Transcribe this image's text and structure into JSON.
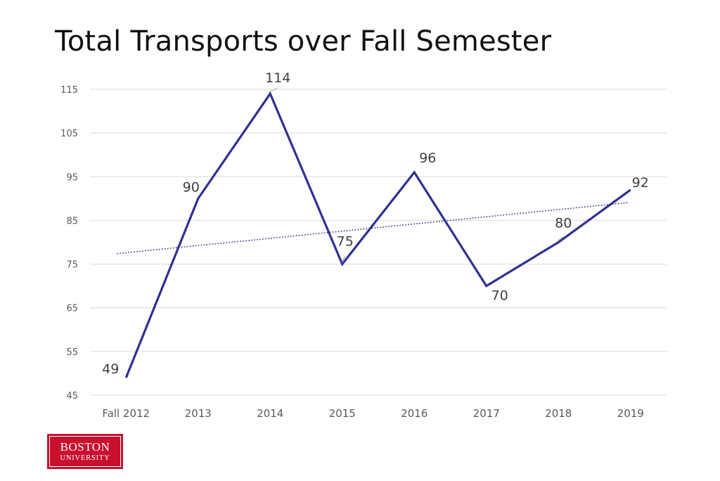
{
  "slide": {
    "title": "Total Transports over Fall Semester"
  },
  "logo": {
    "line1": "BOSTON",
    "line2": "UNIVERSITY",
    "color": "#c8102e"
  },
  "chart_data": {
    "type": "line",
    "title": "Total Transports over Fall Semester",
    "xlabel": "",
    "ylabel": "",
    "categories": [
      "Fall 2012",
      "2013",
      "2014",
      "2015",
      "2016",
      "2017",
      "2018",
      "2019"
    ],
    "series": [
      {
        "values": [
          49,
          90,
          114,
          75,
          96,
          70,
          80,
          92
        ],
        "color": "#2e3192",
        "data_labels": [
          "49",
          "90",
          "114",
          "75",
          "96",
          "70",
          "80",
          "92"
        ]
      }
    ],
    "trendline": {
      "type": "linear",
      "style": "dotted",
      "color": "#2e3192",
      "start": 77.4,
      "end": 89.1
    },
    "ylim": [
      45,
      115
    ],
    "yticks": [
      45,
      55,
      65,
      75,
      85,
      95,
      105,
      115
    ],
    "ytick_labels": [
      "45",
      "55",
      "65",
      "75",
      "85",
      "95",
      "105",
      "115"
    ],
    "grid": true,
    "legend": "none",
    "colors": {
      "gridline": "#d9d9d9",
      "tick_label": "#595959",
      "data_label": "#404040"
    }
  }
}
